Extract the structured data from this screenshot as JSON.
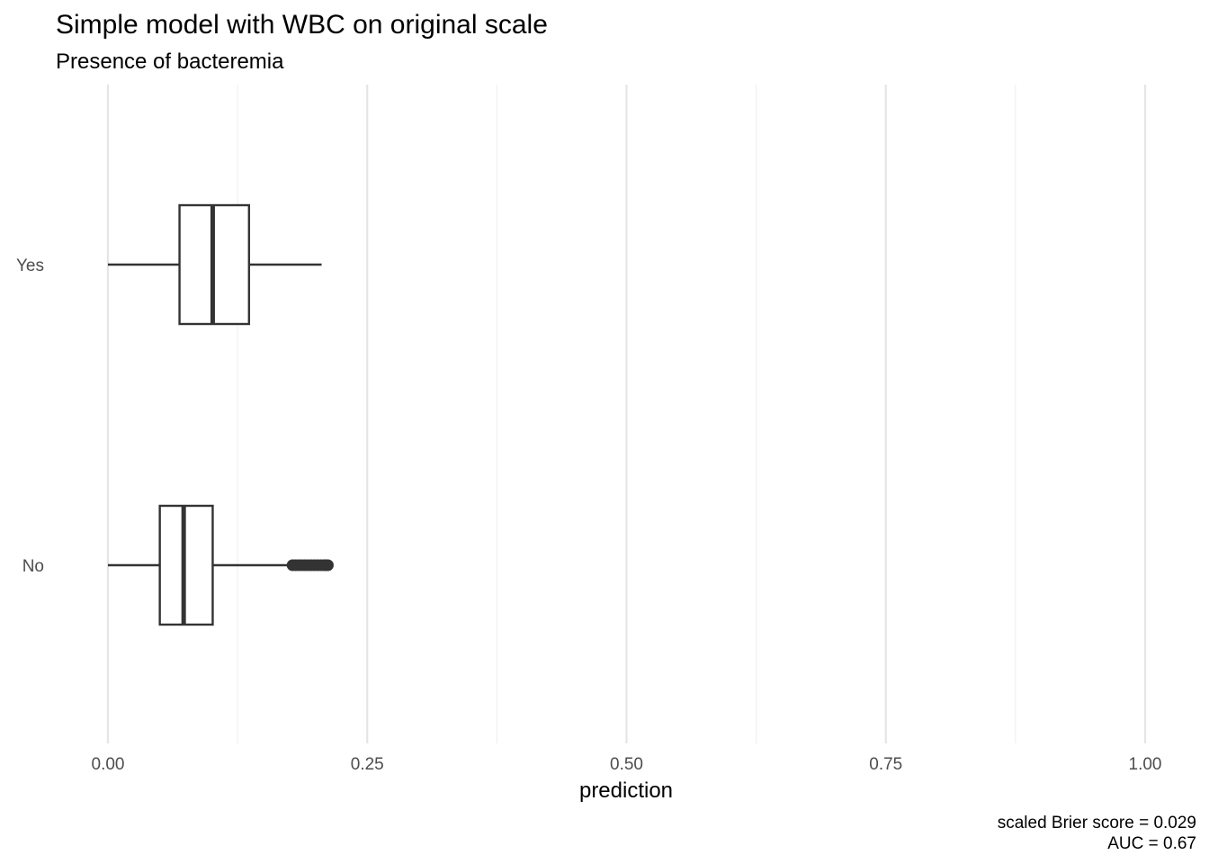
{
  "chart_data": {
    "type": "boxplot",
    "title": "Simple model with WBC on original scale",
    "subtitle": "Presence of bacteremia",
    "xlabel": "prediction",
    "ylabel": "",
    "xlim": [
      0,
      1
    ],
    "x_ticks": [
      0,
      0.25,
      0.5,
      0.75,
      1
    ],
    "x_tick_labels": [
      "0.00",
      "0.25",
      "0.50",
      "0.75",
      "1.00"
    ],
    "grid": "vertical major and minor",
    "categories": [
      "Yes",
      "No"
    ],
    "boxes": [
      {
        "category": "Yes",
        "whisker_low": 0.0,
        "q1": 0.069,
        "median": 0.101,
        "q3": 0.136,
        "whisker_high": 0.206,
        "outliers": []
      },
      {
        "category": "No",
        "whisker_low": 0.0,
        "q1": 0.05,
        "median": 0.073,
        "q3": 0.101,
        "whisker_high": 0.175,
        "outliers": [
          0.178,
          0.181,
          0.184,
          0.187,
          0.19,
          0.193,
          0.196,
          0.199,
          0.202,
          0.205,
          0.208,
          0.21,
          0.212
        ]
      }
    ],
    "caption": [
      "scaled Brier score = 0.029",
      "AUC = 0.67"
    ]
  }
}
